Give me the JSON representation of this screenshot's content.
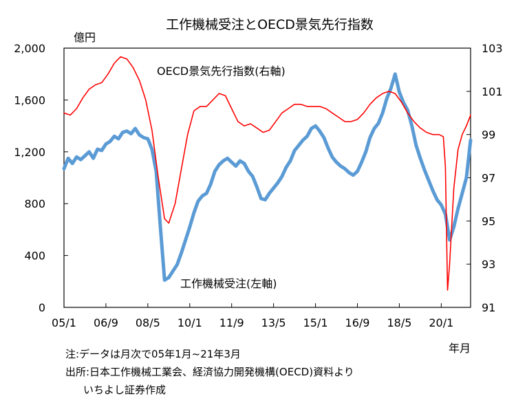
{
  "chart_data": {
    "type": "line",
    "title": "工作機械受注とOECD景気先行指数",
    "y_unit_left": "億円",
    "x_unit": "年月",
    "x_range": [
      "2005-01",
      "2021-03"
    ],
    "x_ticks": [
      "05/1",
      "06/9",
      "08/5",
      "10/1",
      "11/9",
      "13/5",
      "15/1",
      "16/9",
      "18/5",
      "20/1"
    ],
    "y_left": {
      "ticks": [
        "0",
        "400",
        "800",
        "1,200",
        "1,600",
        "2,000"
      ],
      "range": [
        0,
        2000
      ]
    },
    "y_right": {
      "ticks": [
        "91",
        "93",
        "95",
        "97",
        "99",
        "101",
        "103"
      ],
      "range": [
        91,
        103
      ]
    },
    "series": [
      {
        "name": "工作機械受注(左軸)",
        "axis": "left",
        "color": "#5B9BD5",
        "points": [
          [
            "2005-01",
            1070
          ],
          [
            "2005-03",
            1150
          ],
          [
            "2005-05",
            1110
          ],
          [
            "2005-07",
            1160
          ],
          [
            "2005-09",
            1140
          ],
          [
            "2005-11",
            1170
          ],
          [
            "2006-01",
            1200
          ],
          [
            "2006-03",
            1150
          ],
          [
            "2006-05",
            1220
          ],
          [
            "2006-07",
            1210
          ],
          [
            "2006-09",
            1260
          ],
          [
            "2006-11",
            1280
          ],
          [
            "2007-01",
            1320
          ],
          [
            "2007-03",
            1300
          ],
          [
            "2007-05",
            1350
          ],
          [
            "2007-07",
            1360
          ],
          [
            "2007-09",
            1340
          ],
          [
            "2007-11",
            1380
          ],
          [
            "2008-01",
            1330
          ],
          [
            "2008-03",
            1310
          ],
          [
            "2008-05",
            1300
          ],
          [
            "2008-07",
            1220
          ],
          [
            "2008-09",
            1050
          ],
          [
            "2008-11",
            620
          ],
          [
            "2009-01",
            210
          ],
          [
            "2009-03",
            230
          ],
          [
            "2009-05",
            280
          ],
          [
            "2009-07",
            330
          ],
          [
            "2009-09",
            420
          ],
          [
            "2009-11",
            520
          ],
          [
            "2010-01",
            620
          ],
          [
            "2010-03",
            730
          ],
          [
            "2010-05",
            820
          ],
          [
            "2010-07",
            860
          ],
          [
            "2010-09",
            880
          ],
          [
            "2010-11",
            950
          ],
          [
            "2011-01",
            1050
          ],
          [
            "2011-03",
            1100
          ],
          [
            "2011-05",
            1130
          ],
          [
            "2011-07",
            1150
          ],
          [
            "2011-09",
            1120
          ],
          [
            "2011-11",
            1090
          ],
          [
            "2012-01",
            1130
          ],
          [
            "2012-03",
            1110
          ],
          [
            "2012-05",
            1050
          ],
          [
            "2012-07",
            1010
          ],
          [
            "2012-09",
            930
          ],
          [
            "2012-11",
            840
          ],
          [
            "2013-01",
            830
          ],
          [
            "2013-03",
            880
          ],
          [
            "2013-05",
            920
          ],
          [
            "2013-07",
            960
          ],
          [
            "2013-09",
            1010
          ],
          [
            "2013-11",
            1080
          ],
          [
            "2014-01",
            1130
          ],
          [
            "2014-03",
            1210
          ],
          [
            "2014-05",
            1250
          ],
          [
            "2014-07",
            1290
          ],
          [
            "2014-09",
            1320
          ],
          [
            "2014-11",
            1380
          ],
          [
            "2015-01",
            1400
          ],
          [
            "2015-03",
            1360
          ],
          [
            "2015-05",
            1310
          ],
          [
            "2015-07",
            1230
          ],
          [
            "2015-09",
            1160
          ],
          [
            "2015-11",
            1120
          ],
          [
            "2016-01",
            1090
          ],
          [
            "2016-03",
            1070
          ],
          [
            "2016-05",
            1040
          ],
          [
            "2016-07",
            1020
          ],
          [
            "2016-09",
            1050
          ],
          [
            "2016-11",
            1120
          ],
          [
            "2017-01",
            1200
          ],
          [
            "2017-03",
            1310
          ],
          [
            "2017-05",
            1380
          ],
          [
            "2017-07",
            1420
          ],
          [
            "2017-09",
            1500
          ],
          [
            "2017-11",
            1610
          ],
          [
            "2018-01",
            1690
          ],
          [
            "2018-03",
            1800
          ],
          [
            "2018-05",
            1660
          ],
          [
            "2018-07",
            1580
          ],
          [
            "2018-09",
            1520
          ],
          [
            "2018-11",
            1400
          ],
          [
            "2019-01",
            1250
          ],
          [
            "2019-03",
            1150
          ],
          [
            "2019-05",
            1060
          ],
          [
            "2019-07",
            980
          ],
          [
            "2019-09",
            900
          ],
          [
            "2019-11",
            830
          ],
          [
            "2020-01",
            790
          ],
          [
            "2020-03",
            720
          ],
          [
            "2020-05",
            520
          ],
          [
            "2020-07",
            620
          ],
          [
            "2020-09",
            760
          ],
          [
            "2020-11",
            880
          ],
          [
            "2021-01",
            1000
          ],
          [
            "2021-03",
            1290
          ]
        ]
      },
      {
        "name": "OECD景気先行指数(右軸)",
        "axis": "right",
        "color": "#FF0000",
        "points": [
          [
            "2005-01",
            100.0
          ],
          [
            "2005-04",
            99.9
          ],
          [
            "2005-07",
            100.2
          ],
          [
            "2005-10",
            100.7
          ],
          [
            "2006-01",
            101.1
          ],
          [
            "2006-04",
            101.3
          ],
          [
            "2006-07",
            101.4
          ],
          [
            "2006-10",
            101.8
          ],
          [
            "2007-01",
            102.3
          ],
          [
            "2007-04",
            102.6
          ],
          [
            "2007-07",
            102.5
          ],
          [
            "2007-10",
            102.1
          ],
          [
            "2008-01",
            101.5
          ],
          [
            "2008-04",
            100.6
          ],
          [
            "2008-07",
            99.2
          ],
          [
            "2008-10",
            97.0
          ],
          [
            "2009-01",
            95.1
          ],
          [
            "2009-03",
            94.9
          ],
          [
            "2009-06",
            95.8
          ],
          [
            "2009-09",
            97.4
          ],
          [
            "2009-12",
            99.0
          ],
          [
            "2010-03",
            100.1
          ],
          [
            "2010-06",
            100.3
          ],
          [
            "2010-09",
            100.3
          ],
          [
            "2010-12",
            100.6
          ],
          [
            "2011-03",
            100.9
          ],
          [
            "2011-06",
            100.8
          ],
          [
            "2011-09",
            100.2
          ],
          [
            "2011-12",
            99.6
          ],
          [
            "2012-03",
            99.4
          ],
          [
            "2012-06",
            99.5
          ],
          [
            "2012-09",
            99.3
          ],
          [
            "2012-12",
            99.1
          ],
          [
            "2013-03",
            99.2
          ],
          [
            "2013-06",
            99.6
          ],
          [
            "2013-09",
            100.0
          ],
          [
            "2013-12",
            100.2
          ],
          [
            "2014-03",
            100.4
          ],
          [
            "2014-06",
            100.4
          ],
          [
            "2014-09",
            100.3
          ],
          [
            "2014-12",
            100.3
          ],
          [
            "2015-03",
            100.3
          ],
          [
            "2015-06",
            100.2
          ],
          [
            "2015-09",
            100.0
          ],
          [
            "2015-12",
            99.8
          ],
          [
            "2016-03",
            99.6
          ],
          [
            "2016-06",
            99.6
          ],
          [
            "2016-09",
            99.7
          ],
          [
            "2016-12",
            100.0
          ],
          [
            "2017-03",
            100.4
          ],
          [
            "2017-06",
            100.7
          ],
          [
            "2017-09",
            100.9
          ],
          [
            "2017-12",
            101.0
          ],
          [
            "2018-03",
            100.9
          ],
          [
            "2018-06",
            100.5
          ],
          [
            "2018-09",
            100.0
          ],
          [
            "2018-12",
            99.6
          ],
          [
            "2019-03",
            99.3
          ],
          [
            "2019-06",
            99.1
          ],
          [
            "2019-09",
            99.0
          ],
          [
            "2019-12",
            99.0
          ],
          [
            "2020-02",
            98.9
          ],
          [
            "2020-03",
            97.5
          ],
          [
            "2020-04",
            91.8
          ],
          [
            "2020-05",
            93.0
          ],
          [
            "2020-07",
            96.5
          ],
          [
            "2020-09",
            98.3
          ],
          [
            "2020-11",
            99.0
          ],
          [
            "2021-01",
            99.4
          ],
          [
            "2021-03",
            99.9
          ]
        ]
      }
    ],
    "annotations": [
      {
        "text": "OECD景気先行指数(右軸)",
        "series": "OECD景気先行指数(右軸)"
      },
      {
        "text": "工作機械受注(左軸)",
        "series": "工作機械受注(左軸)"
      }
    ],
    "legend": "none",
    "grid": false
  },
  "notes": {
    "line1": "注:データは月次で05年1月~21年3月",
    "line2": "出所:日本工作機械工業会、経済協力開発機構(OECD)資料より",
    "line3": "いちよし証券作成"
  }
}
